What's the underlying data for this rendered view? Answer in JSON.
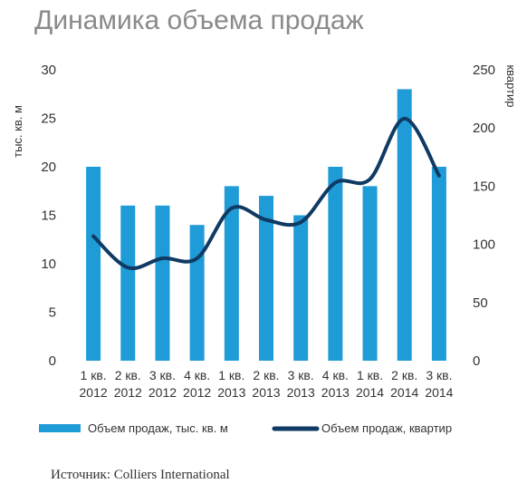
{
  "chart_data": {
    "type": "bar+line",
    "title": "Динамика объема продаж",
    "categories": [
      [
        "1 кв.",
        "2012"
      ],
      [
        "2 кв.",
        "2012"
      ],
      [
        "3 кв.",
        "2012"
      ],
      [
        "4 кв.",
        "2012"
      ],
      [
        "1 кв.",
        "2013"
      ],
      [
        "2 кв.",
        "2013"
      ],
      [
        "3 кв.",
        "2013"
      ],
      [
        "4 кв.",
        "2013"
      ],
      [
        "1 кв.",
        "2014"
      ],
      [
        "2 кв.",
        "2014"
      ],
      [
        "3 кв.",
        "2014"
      ]
    ],
    "series": [
      {
        "name": "Объем продаж, тыс. кв. м",
        "kind": "bar",
        "axis": "left",
        "color": "#1f9bd7",
        "values": [
          20,
          16,
          16,
          14,
          18,
          17,
          15,
          20,
          18,
          28,
          20
        ]
      },
      {
        "name": "Объем продаж, квартир",
        "kind": "line",
        "axis": "right",
        "color": "#0f3a63",
        "values": [
          107,
          80,
          88,
          88,
          131,
          121,
          119,
          153,
          156,
          208,
          159
        ]
      }
    ],
    "y_left": {
      "label": "тыс. кв. м",
      "min": 0,
      "max": 30,
      "ticks": [
        0,
        5,
        10,
        15,
        20,
        25,
        30
      ]
    },
    "y_right": {
      "label": "квартир",
      "min": 0,
      "max": 250,
      "ticks": [
        0,
        50,
        100,
        150,
        200,
        250
      ]
    },
    "grid": false,
    "legend": "bottom"
  },
  "source": "Источник: Colliers International"
}
